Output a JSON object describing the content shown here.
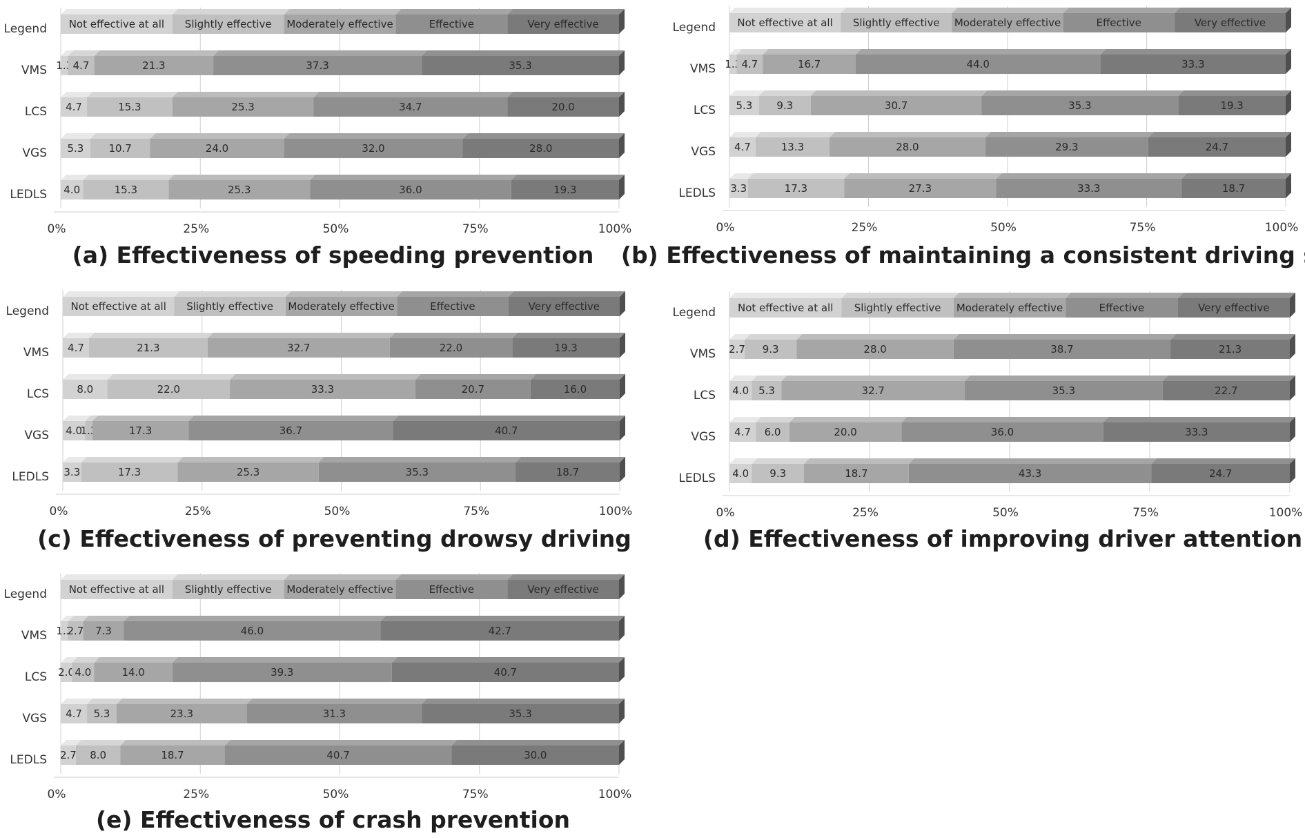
{
  "figure": {
    "categories_label": "Legend",
    "legend_labels": [
      "Not effective at all",
      "Slightly effective",
      "Moderately effective",
      "Effective",
      "Very effective"
    ],
    "colors": {
      "not_effective": "#d2d2d2",
      "slightly": "#c0c0c0",
      "moderately": "#a6a6a6",
      "effective": "#8f8f8f",
      "very": "#7a7a7a"
    }
  },
  "chart_data": [
    {
      "type": "bar",
      "stacked": true,
      "orientation": "horizontal",
      "title": "(a) Effectiveness of speeding prevention",
      "categories": [
        "VMS",
        "LCS",
        "VGS",
        "LEDLS"
      ],
      "series": [
        {
          "name": "Not effective at all",
          "values": [
            1.3,
            4.7,
            5.3,
            4.0
          ]
        },
        {
          "name": "Slightly effective",
          "values": [
            4.7,
            15.3,
            10.7,
            15.3
          ]
        },
        {
          "name": "Moderately effective",
          "values": [
            21.3,
            25.3,
            24.0,
            25.3
          ]
        },
        {
          "name": "Effective",
          "values": [
            37.3,
            34.7,
            32.0,
            36.0
          ]
        },
        {
          "name": "Very effective",
          "values": [
            35.3,
            20.0,
            28.0,
            19.3
          ]
        }
      ],
      "xlim": [
        0,
        100
      ],
      "xticks": [
        "0%",
        "25%",
        "50%",
        "75%",
        "100%"
      ]
    },
    {
      "type": "bar",
      "stacked": true,
      "orientation": "horizontal",
      "title": "(b) Effectiveness of maintaining a consistent driving speed",
      "categories": [
        "VMS",
        "LCS",
        "VGS",
        "LEDLS"
      ],
      "series": [
        {
          "name": "Not effective at all",
          "values": [
            1.3,
            5.3,
            4.7,
            3.3
          ]
        },
        {
          "name": "Slightly effective",
          "values": [
            4.7,
            9.3,
            13.3,
            17.3
          ]
        },
        {
          "name": "Moderately effective",
          "values": [
            16.7,
            30.7,
            28.0,
            27.3
          ]
        },
        {
          "name": "Effective",
          "values": [
            44.0,
            35.3,
            29.3,
            33.3
          ]
        },
        {
          "name": "Very effective",
          "values": [
            33.3,
            19.3,
            24.7,
            18.7
          ]
        }
      ],
      "xlim": [
        0,
        100
      ],
      "xticks": [
        "0%",
        "25%",
        "50%",
        "75%",
        "100%"
      ]
    },
    {
      "type": "bar",
      "stacked": true,
      "orientation": "horizontal",
      "title": "(c) Effectiveness of preventing drowsy driving",
      "categories": [
        "VMS",
        "LCS",
        "VGS",
        "LEDLS"
      ],
      "series": [
        {
          "name": "Not effective at all",
          "values": [
            4.7,
            8.0,
            4.0,
            3.3
          ]
        },
        {
          "name": "Slightly effective",
          "values": [
            21.3,
            22.0,
            1.3,
            17.3
          ]
        },
        {
          "name": "Moderately effective",
          "values": [
            32.7,
            33.3,
            17.3,
            25.3
          ]
        },
        {
          "name": "Effective",
          "values": [
            22.0,
            20.7,
            36.7,
            35.3
          ]
        },
        {
          "name": "Very effective",
          "values": [
            19.3,
            16.0,
            40.7,
            18.7
          ]
        }
      ],
      "xlim": [
        0,
        100
      ],
      "xticks": [
        "0%",
        "25%",
        "50%",
        "75%",
        "100%"
      ]
    },
    {
      "type": "bar",
      "stacked": true,
      "orientation": "horizontal",
      "title": "(d) Effectiveness of improving driver attention",
      "categories": [
        "VMS",
        "LCS",
        "VGS",
        "LEDLS"
      ],
      "series": [
        {
          "name": "Not effective at all",
          "values": [
            2.7,
            4.0,
            4.7,
            4.0
          ]
        },
        {
          "name": "Slightly effective",
          "values": [
            9.3,
            5.3,
            6.0,
            9.3
          ]
        },
        {
          "name": "Moderately effective",
          "values": [
            28.0,
            32.7,
            20.0,
            18.7
          ]
        },
        {
          "name": "Effective",
          "values": [
            38.7,
            35.3,
            36.0,
            43.3
          ]
        },
        {
          "name": "Very effective",
          "values": [
            21.3,
            22.7,
            33.3,
            24.7
          ]
        }
      ],
      "xlim": [
        0,
        100
      ],
      "xticks": [
        "0%",
        "25%",
        "50%",
        "75%",
        "100%"
      ]
    },
    {
      "type": "bar",
      "stacked": true,
      "orientation": "horizontal",
      "title": "(e) Effectiveness of crash prevention",
      "categories": [
        "VMS",
        "LCS",
        "VGS",
        "LEDLS"
      ],
      "series": [
        {
          "name": "Not effective at all",
          "values": [
            1.3,
            2.0,
            4.7,
            2.7
          ]
        },
        {
          "name": "Slightly effective",
          "values": [
            2.7,
            4.0,
            5.3,
            8.0
          ]
        },
        {
          "name": "Moderately effective",
          "values": [
            7.3,
            14.0,
            23.3,
            18.7
          ]
        },
        {
          "name": "Effective",
          "values": [
            46.0,
            39.3,
            31.3,
            40.7
          ]
        },
        {
          "name": "Very effective",
          "values": [
            42.7,
            40.7,
            35.3,
            30.0
          ]
        }
      ],
      "xlim": [
        0,
        100
      ],
      "xticks": [
        "0%",
        "25%",
        "50%",
        "75%",
        "100%"
      ]
    }
  ]
}
